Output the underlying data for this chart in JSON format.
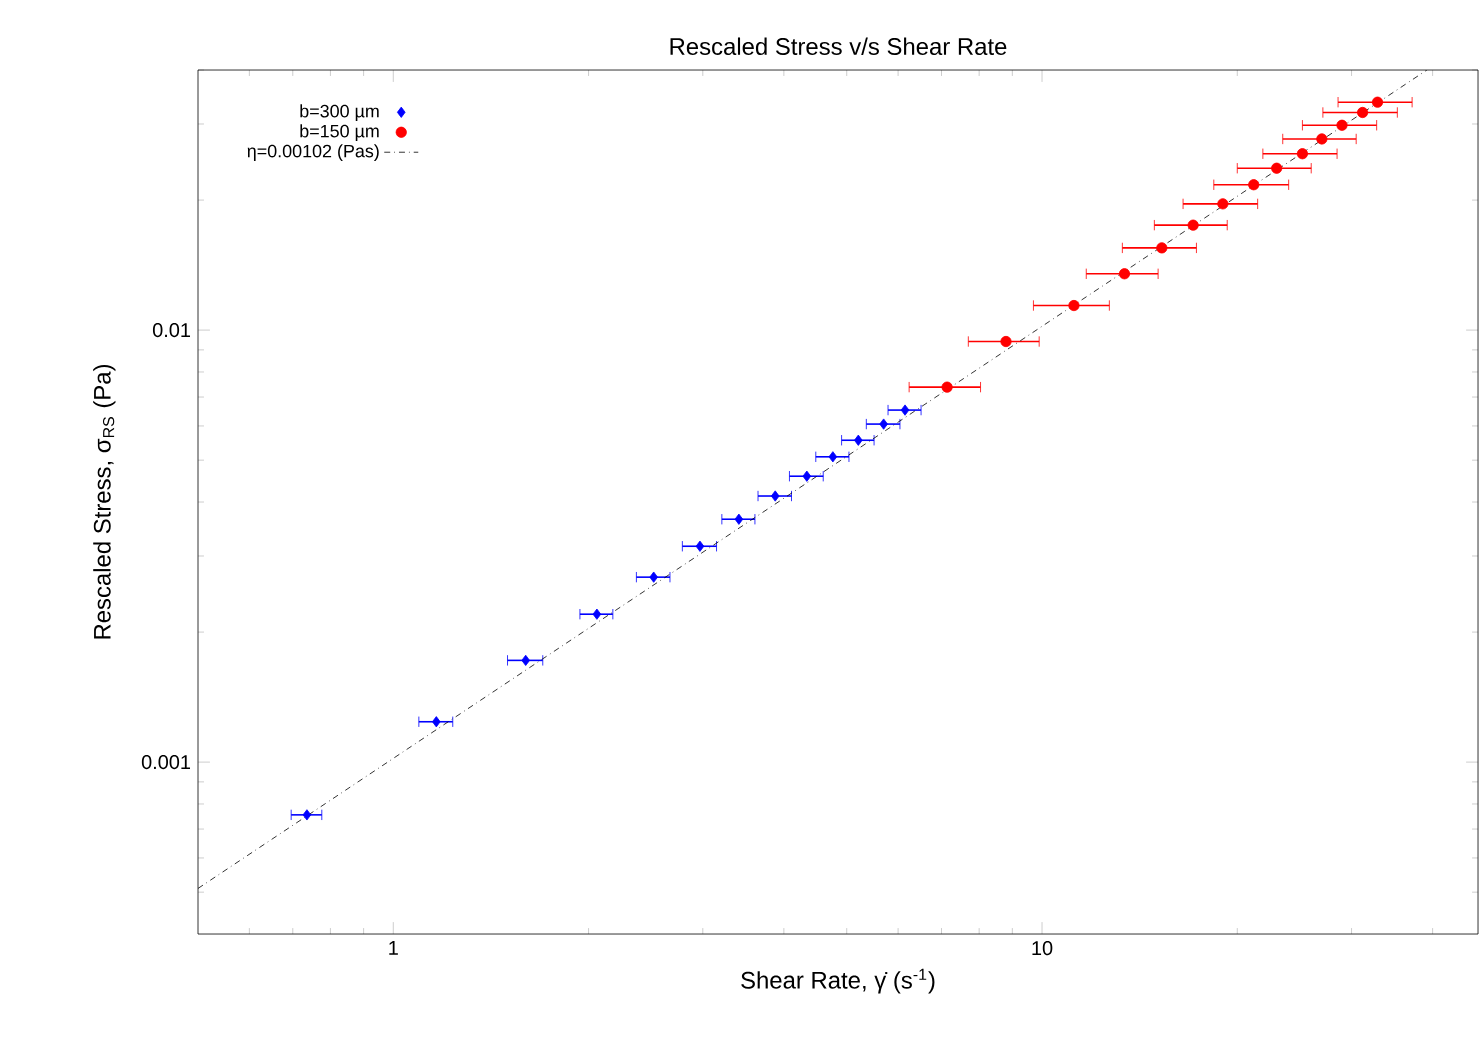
{
  "chart_data": {
    "type": "scatter",
    "title": "Rescaled Stress v/s Shear Rate",
    "xlabel": "Shear Rate, γ̇ (s$^{-1}$)",
    "ylabel": "Rescaled Stress, σ$_{RS}$ (Pa)",
    "log": "xy",
    "xlim": [
      0.5,
      47
    ],
    "ylim": [
      0.0004,
      0.04
    ],
    "xticks": [
      {
        "value": 0.6,
        "label": null
      },
      {
        "value": 0.7,
        "label": null
      },
      {
        "value": 0.8,
        "label": null
      },
      {
        "value": 0.9,
        "label": null
      },
      1,
      {
        "value": 2,
        "label": null
      },
      {
        "value": 3,
        "label": null
      },
      {
        "value": 4,
        "label": null
      },
      {
        "value": 5,
        "label": null
      },
      {
        "value": 6,
        "label": null
      },
      {
        "value": 7,
        "label": null
      },
      {
        "value": 8,
        "label": null
      },
      {
        "value": 9,
        "label": null
      },
      10,
      {
        "value": 20,
        "label": null
      },
      {
        "value": 30,
        "label": null
      },
      {
        "value": 40,
        "label": null
      }
    ],
    "yticks": [
      {
        "value": 0.0005,
        "label": null
      },
      {
        "value": 0.0006,
        "label": null
      },
      {
        "value": 0.0007,
        "label": null
      },
      {
        "value": 0.0008,
        "label": null
      },
      {
        "value": 0.0009,
        "label": null
      },
      0.001,
      {
        "value": 0.002,
        "label": null
      },
      {
        "value": 0.003,
        "label": null
      },
      {
        "value": 0.004,
        "label": null
      },
      {
        "value": 0.005,
        "label": null
      },
      {
        "value": 0.006,
        "label": null
      },
      {
        "value": 0.007,
        "label": null
      },
      {
        "value": 0.008,
        "label": null
      },
      {
        "value": 0.009,
        "label": null
      },
      0.01,
      {
        "value": 0.02,
        "label": null
      },
      {
        "value": 0.03,
        "label": null
      },
      {
        "value": 0.04,
        "label": null
      }
    ],
    "legend": "top left",
    "grid": false,
    "series": [
      {
        "name": "b=300 µm",
        "marker": "diamond",
        "color": "#0000ff",
        "x": [
          0.736,
          1.165,
          1.6,
          2.06,
          2.52,
          2.97,
          3.41,
          3.88,
          4.34,
          4.76,
          5.21,
          5.7,
          6.15
        ],
        "values": [
          0.000755,
          0.00124,
          0.00172,
          0.0022,
          0.00268,
          0.00316,
          0.00365,
          0.00413,
          0.00459,
          0.00509,
          0.00556,
          0.00606,
          0.00653
        ],
        "xerrors": [
          0.04,
          0.07,
          0.1,
          0.12,
          0.15,
          0.18,
          0.2,
          0.23,
          0.26,
          0.28,
          0.3,
          0.34,
          0.36
        ]
      },
      {
        "name": "b=150 µm",
        "marker": "circle",
        "color": "#ff0000",
        "x": [
          7.14,
          8.8,
          11.2,
          13.4,
          15.3,
          17.1,
          19.0,
          21.2,
          23.0,
          25.2,
          27.0,
          29.0,
          31.2,
          32.9
        ],
        "values": [
          0.00738,
          0.00941,
          0.0114,
          0.0135,
          0.0155,
          0.0175,
          0.0196,
          0.0217,
          0.0237,
          0.0256,
          0.0277,
          0.0298,
          0.0319,
          0.0337
        ],
        "xerrors": [
          0.9,
          1.1,
          1.5,
          1.7,
          2.0,
          2.2,
          2.5,
          2.8,
          3.0,
          3.3,
          3.5,
          3.8,
          4.1,
          4.3
        ]
      },
      {
        "name": "η=0.00102 (Pas)",
        "type": "line",
        "line_style": "dashdot",
        "color": "#000000",
        "x": [
          0.5,
          39.2
        ],
        "values": [
          0.00051,
          0.04
        ]
      }
    ]
  }
}
